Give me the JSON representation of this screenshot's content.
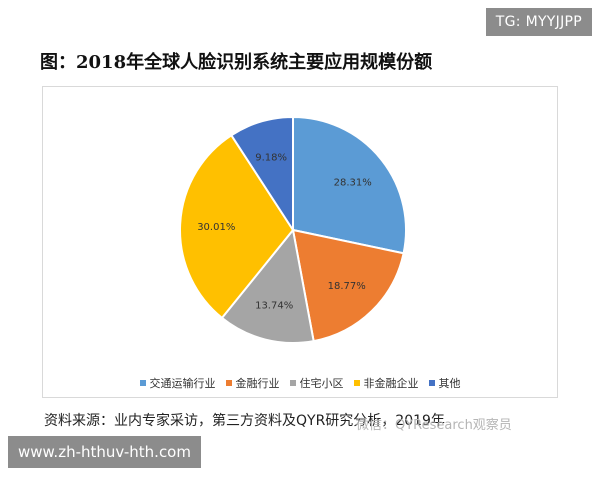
{
  "badge": {
    "text": "TG: MYYJJPP"
  },
  "title": "图：2018年全球人脸识别系统主要应用规模份额",
  "source": "资料来源：业内专家采访，第三方资料及QYR研究分析，2019年",
  "watermark": {
    "text": "微信：QYResearch观察员"
  },
  "url_banner": {
    "text": "www.zh-hthuv-hth.com"
  },
  "colors": {
    "交通运输行业": "#5b9bd5",
    "金融行业": "#ed7d31",
    "住宅小区": "#a5a5a5",
    "非金融企业": "#ffc000",
    "其他": "#4472c4"
  },
  "chart_data": {
    "type": "pie",
    "title": "图：2018年全球人脸识别系统主要应用规模份额",
    "categories": [
      "交通运输行业",
      "金融行业",
      "住宅小区",
      "非金融企业",
      "其他"
    ],
    "values": [
      28.31,
      18.77,
      13.74,
      30.01,
      9.18
    ],
    "labels": [
      "28.31%",
      "18.77%",
      "13.74%",
      "30.01%",
      "9.18%"
    ],
    "legend": "bottom"
  }
}
